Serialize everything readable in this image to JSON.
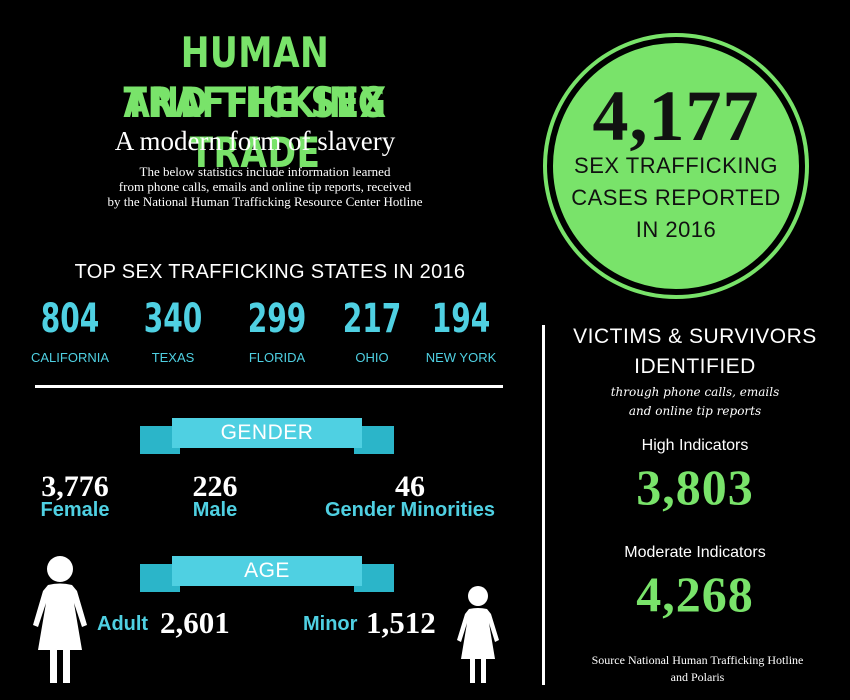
{
  "header": {
    "title_line1": "HUMAN TRAFFICKING",
    "title_line2": "AND THE SEX TRADE",
    "subtitle": "A modern form of slavery",
    "description_line1": "The below statistics include information learned",
    "description_line2": "from phone calls, emails and online tip reports, received",
    "description_line3": "by the National Human Trafficking Resource Center Hotline"
  },
  "cases": {
    "number": "4,177",
    "line1": "SEX TRAFFICKING",
    "line2": "CASES REPORTED",
    "line3": "IN 2016"
  },
  "states": {
    "heading": "TOP SEX TRAFFICKING STATES IN 2016",
    "items": [
      {
        "value": "804",
        "name": "CALIFORNIA"
      },
      {
        "value": "340",
        "name": "TEXAS"
      },
      {
        "value": "299",
        "name": "FLORIDA"
      },
      {
        "value": "217",
        "name": "OHIO"
      },
      {
        "value": "194",
        "name": "NEW YORK"
      }
    ]
  },
  "gender": {
    "banner": "GENDER",
    "items": [
      {
        "value": "3,776",
        "label": "Female"
      },
      {
        "value": "226",
        "label": "Male"
      },
      {
        "value": "46",
        "label": "Gender Minorities"
      }
    ]
  },
  "age": {
    "banner": "AGE",
    "adult_label": "Adult",
    "adult_value": "2,601",
    "minor_label": "Minor",
    "minor_value": "1,512"
  },
  "victims": {
    "heading_line1": "VICTIMS & SURVIVORS",
    "heading_line2": "IDENTIFIED",
    "sub_line1": "through phone calls, emails",
    "sub_line2": "and online tip reports",
    "high_label": "High Indicators",
    "high_value": "3,803",
    "moderate_label": "Moderate Indicators",
    "moderate_value": "4,268"
  },
  "source": {
    "line1": "Source National Human Trafficking Hotline",
    "line2": "and Polaris"
  },
  "colors": {
    "green": "#79e36a",
    "cyan": "#4fd0e2",
    "background": "#000000"
  },
  "icons": [
    "woman-silhouette-icon",
    "girl-silhouette-icon"
  ]
}
